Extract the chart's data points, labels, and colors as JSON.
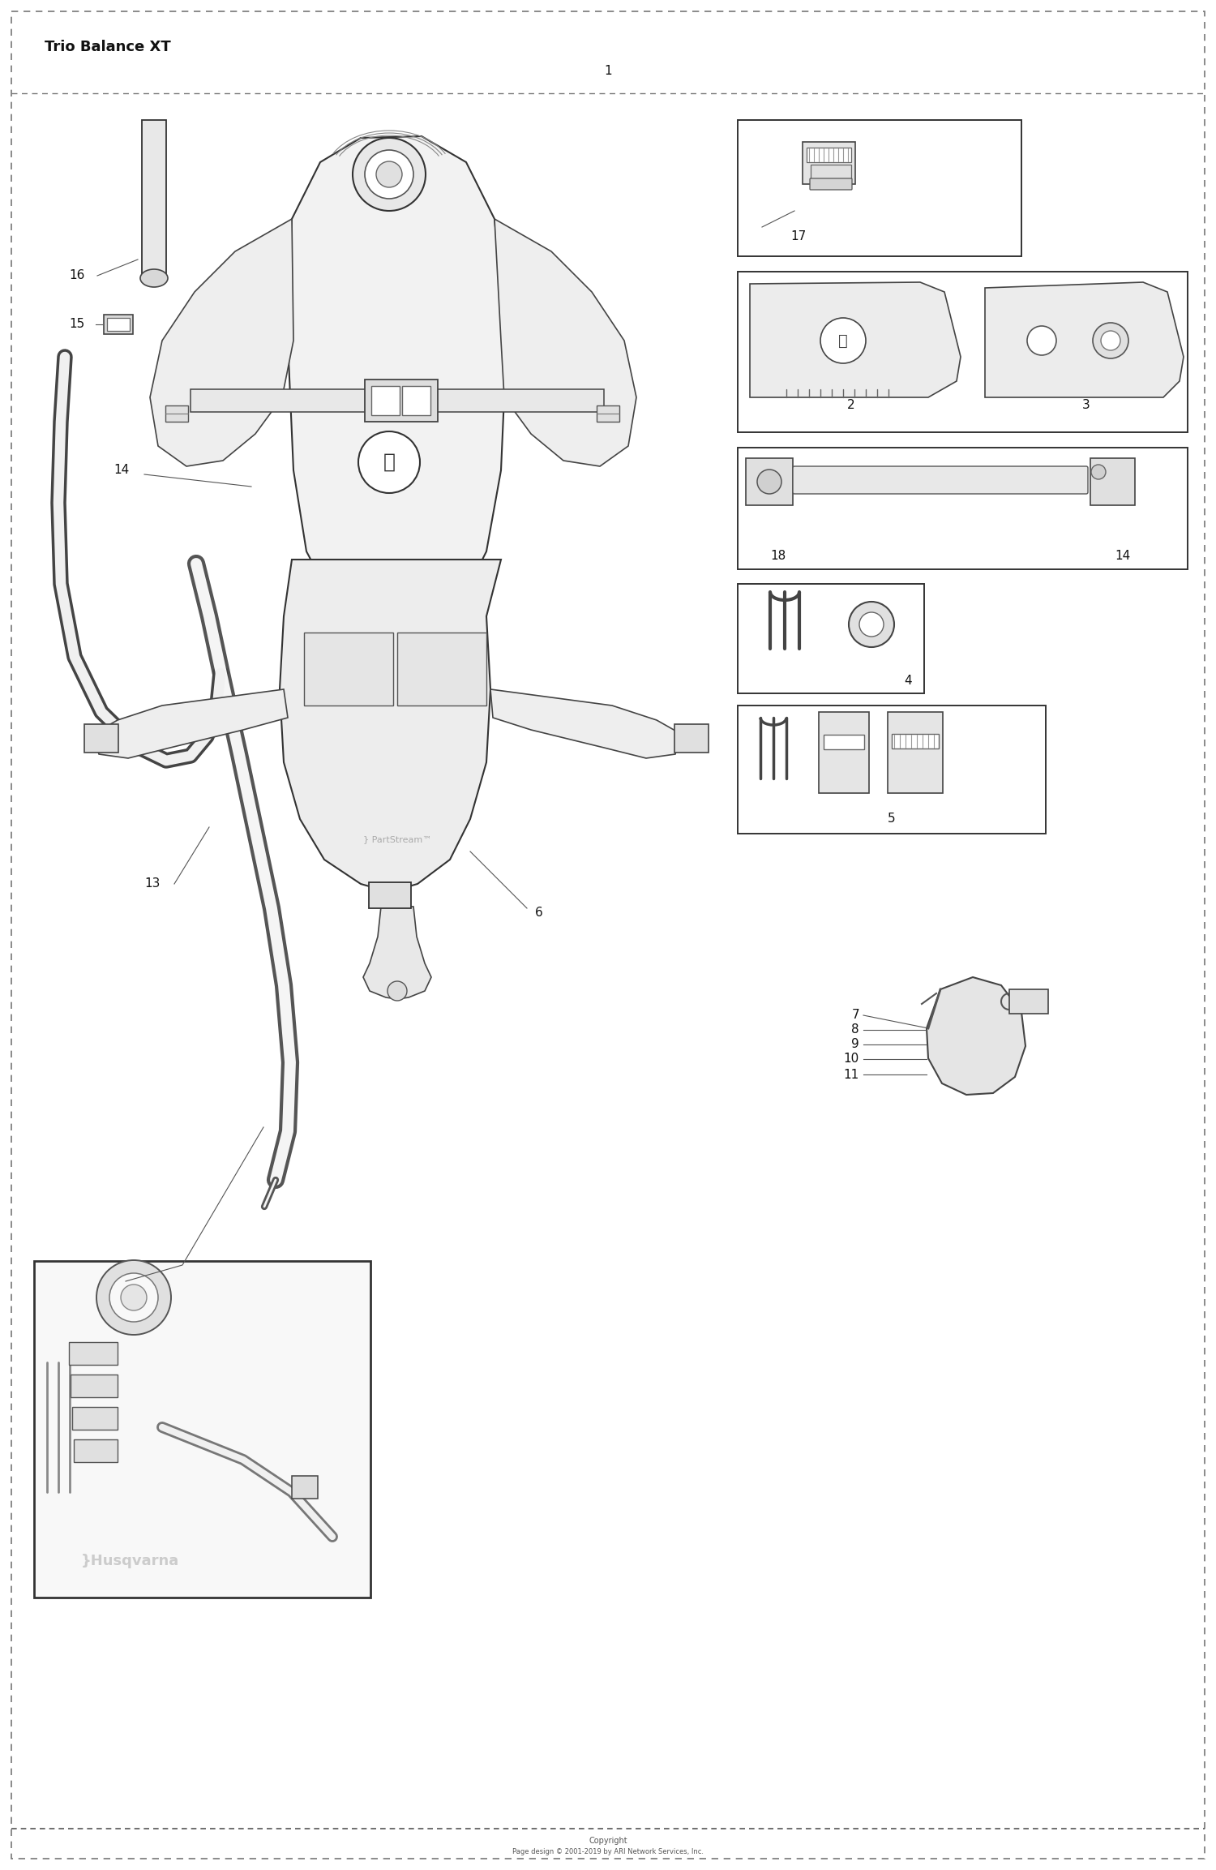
{
  "title": "Trio Balance XT",
  "copyright_line1": "Copyright",
  "copyright_line2": "Page design © 2001-2019 by ARI Network Services, Inc.",
  "partstream": "} PartStream™",
  "husqvarna_wm": "}Husqvarna",
  "bg_color": "#ffffff",
  "figsize": [
    15.0,
    23.06
  ],
  "dpi": 100,
  "font_title": 13,
  "font_label": 11,
  "font_small": 7,
  "font_wm": 13
}
